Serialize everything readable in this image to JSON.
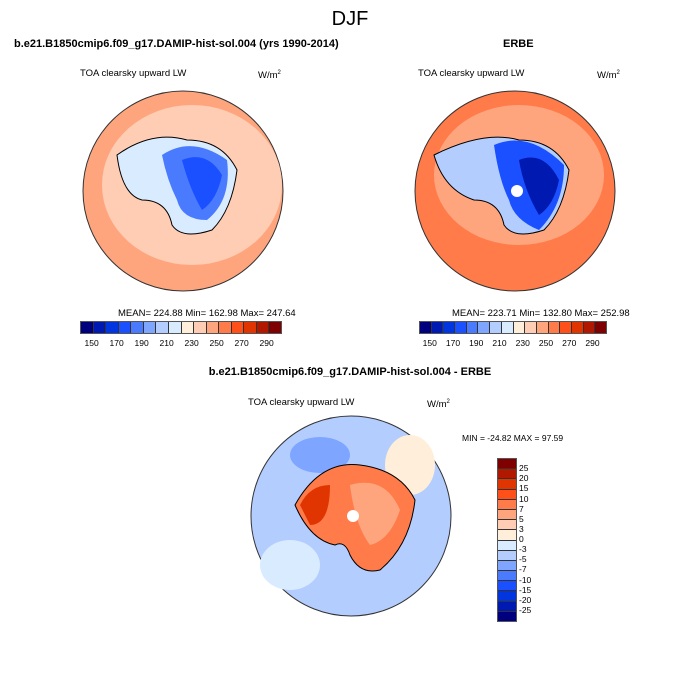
{
  "title": "DJF",
  "panels": [
    {
      "title": "b.e21.B1850cmip6.f09_g17.DAMIP-hist-sol.004 (yrs 1990-2014)",
      "variable": "TOA clearsky upward LW",
      "units": "W/m",
      "units_sup": "2",
      "stats": "MEAN= 224.88  Min= 162.98  Max= 247.64"
    },
    {
      "title": "ERBE",
      "variable": "TOA clearsky upward LW",
      "units": "W/m",
      "units_sup": "2",
      "stats": "MEAN= 223.71  Min= 132.80  Max= 252.98"
    },
    {
      "title": "b.e21.B1850cmip6.f09_g17.DAMIP-hist-sol.004 - ERBE",
      "variable": "TOA clearsky upward LW",
      "units": "W/m",
      "units_sup": "2",
      "stats": "MIN = -24.82 MAX =  97.59"
    }
  ],
  "colorbar_abs": {
    "labels": [
      "150",
      "170",
      "190",
      "210",
      "230",
      "250",
      "270",
      "290"
    ],
    "colors": [
      "#00007f",
      "#0019b0",
      "#0035e0",
      "#1a50ff",
      "#4a7bff",
      "#7ea5ff",
      "#b3cdff",
      "#d9ebff",
      "#ffeed9",
      "#ffcdb3",
      "#ffa57e",
      "#ff7b4a",
      "#ff501a",
      "#e03500",
      "#b01900",
      "#7f0000"
    ]
  },
  "colorbar_diff": {
    "labels": [
      "25",
      "20",
      "15",
      "10",
      "7",
      "5",
      "3",
      "0",
      "-3",
      "-5",
      "-7",
      "-10",
      "-15",
      "-20",
      "-25"
    ],
    "colors": [
      "#7f0000",
      "#b01900",
      "#e03500",
      "#ff501a",
      "#ff7b4a",
      "#ffa57e",
      "#ffcdb3",
      "#ffeed9",
      "#d9ebff",
      "#b3cdff",
      "#7ea5ff",
      "#4a7bff",
      "#1a50ff",
      "#0035e0",
      "#0019b0",
      "#00007f"
    ]
  }
}
